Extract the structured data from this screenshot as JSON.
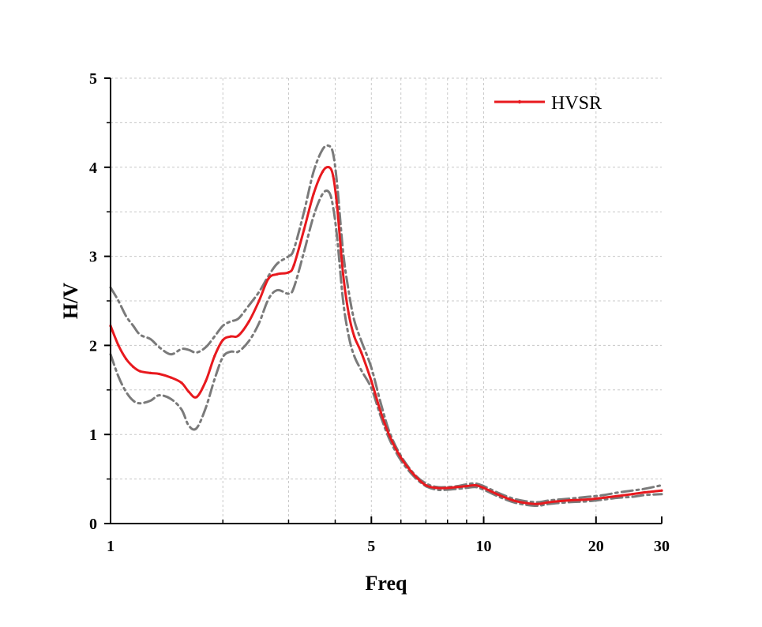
{
  "chart_data": {
    "type": "line",
    "xlabel": "Freq",
    "ylabel": "H/V",
    "xscale": "log",
    "xlim": [
      1,
      30
    ],
    "ylim": [
      0,
      5
    ],
    "xticks": [
      1,
      5,
      10,
      20,
      30
    ],
    "xtick_labels": [
      "1",
      "5",
      "10",
      "20",
      "30"
    ],
    "yticks": [
      0,
      1,
      2,
      3,
      4,
      5
    ],
    "ytick_labels": [
      "0",
      "1",
      "2",
      "3",
      "4",
      "5"
    ],
    "grid": true,
    "legend": {
      "position": "top-right",
      "entries": [
        "HVSR"
      ]
    },
    "series": [
      {
        "name": "HVSR",
        "role": "mean",
        "color": "#e8191e",
        "style": "solid",
        "x": [
          1.0,
          1.05,
          1.1,
          1.15,
          1.2,
          1.28,
          1.35,
          1.45,
          1.55,
          1.62,
          1.7,
          1.8,
          1.9,
          2.0,
          2.1,
          2.2,
          2.35,
          2.5,
          2.65,
          2.8,
          3.0,
          3.1,
          3.3,
          3.5,
          3.7,
          3.85,
          3.95,
          4.05,
          4.2,
          4.35,
          4.5,
          4.7,
          5.0,
          5.3,
          5.6,
          6.0,
          6.5,
          7.0,
          7.5,
          8.0,
          8.5,
          9.0,
          9.5,
          10.0,
          11.0,
          12.0,
          13.0,
          14.0,
          15.0,
          17.0,
          19.0,
          21.0,
          23.0,
          25.0,
          27.0,
          30.0
        ],
        "y": [
          2.22,
          2.0,
          1.85,
          1.76,
          1.71,
          1.69,
          1.68,
          1.64,
          1.58,
          1.48,
          1.42,
          1.6,
          1.88,
          2.06,
          2.1,
          2.11,
          2.27,
          2.5,
          2.75,
          2.8,
          2.82,
          2.9,
          3.3,
          3.7,
          3.95,
          4.0,
          3.9,
          3.55,
          2.8,
          2.35,
          2.1,
          1.92,
          1.6,
          1.25,
          0.98,
          0.74,
          0.55,
          0.43,
          0.4,
          0.4,
          0.41,
          0.42,
          0.43,
          0.4,
          0.32,
          0.26,
          0.23,
          0.22,
          0.24,
          0.26,
          0.27,
          0.29,
          0.31,
          0.33,
          0.35,
          0.37
        ]
      },
      {
        "name": "upper",
        "role": "upper bound",
        "color": "#7a7a7a",
        "style": "dash-dot",
        "x": [
          1.0,
          1.05,
          1.1,
          1.15,
          1.2,
          1.28,
          1.35,
          1.45,
          1.55,
          1.62,
          1.7,
          1.8,
          1.9,
          2.0,
          2.1,
          2.2,
          2.35,
          2.5,
          2.65,
          2.8,
          3.0,
          3.1,
          3.3,
          3.5,
          3.7,
          3.85,
          3.95,
          4.05,
          4.2,
          4.35,
          4.5,
          4.7,
          5.0,
          5.3,
          5.6,
          6.0,
          6.5,
          7.0,
          7.5,
          8.0,
          8.5,
          9.0,
          9.5,
          10.0,
          11.0,
          12.0,
          13.0,
          14.0,
          15.0,
          17.0,
          19.0,
          21.0,
          23.0,
          25.0,
          27.0,
          30.0
        ],
        "y": [
          2.65,
          2.5,
          2.33,
          2.22,
          2.12,
          2.07,
          1.98,
          1.9,
          1.96,
          1.95,
          1.92,
          1.98,
          2.1,
          2.22,
          2.27,
          2.3,
          2.45,
          2.6,
          2.78,
          2.92,
          3.0,
          3.08,
          3.5,
          3.95,
          4.2,
          4.24,
          4.15,
          3.8,
          3.05,
          2.6,
          2.28,
          2.05,
          1.75,
          1.35,
          1.02,
          0.76,
          0.56,
          0.45,
          0.41,
          0.41,
          0.42,
          0.44,
          0.45,
          0.42,
          0.34,
          0.28,
          0.25,
          0.24,
          0.26,
          0.28,
          0.3,
          0.32,
          0.35,
          0.37,
          0.39,
          0.43
        ]
      },
      {
        "name": "lower",
        "role": "lower bound",
        "color": "#7a7a7a",
        "style": "dash-dot",
        "x": [
          1.0,
          1.05,
          1.1,
          1.15,
          1.2,
          1.28,
          1.35,
          1.45,
          1.55,
          1.62,
          1.7,
          1.8,
          1.9,
          2.0,
          2.1,
          2.2,
          2.35,
          2.5,
          2.65,
          2.8,
          3.0,
          3.1,
          3.3,
          3.5,
          3.7,
          3.85,
          3.95,
          4.05,
          4.2,
          4.35,
          4.5,
          4.7,
          5.0,
          5.3,
          5.6,
          6.0,
          6.5,
          7.0,
          7.5,
          8.0,
          8.5,
          9.0,
          9.5,
          10.0,
          11.0,
          12.0,
          13.0,
          14.0,
          15.0,
          17.0,
          19.0,
          21.0,
          23.0,
          25.0,
          27.0,
          30.0
        ],
        "y": [
          1.9,
          1.65,
          1.48,
          1.38,
          1.35,
          1.38,
          1.44,
          1.4,
          1.28,
          1.1,
          1.07,
          1.3,
          1.62,
          1.87,
          1.93,
          1.93,
          2.05,
          2.25,
          2.52,
          2.62,
          2.58,
          2.65,
          3.05,
          3.45,
          3.7,
          3.72,
          3.55,
          3.2,
          2.5,
          2.1,
          1.88,
          1.72,
          1.52,
          1.2,
          0.94,
          0.71,
          0.53,
          0.42,
          0.38,
          0.38,
          0.39,
          0.4,
          0.41,
          0.38,
          0.3,
          0.24,
          0.21,
          0.2,
          0.22,
          0.24,
          0.25,
          0.27,
          0.29,
          0.3,
          0.32,
          0.33
        ]
      }
    ]
  }
}
